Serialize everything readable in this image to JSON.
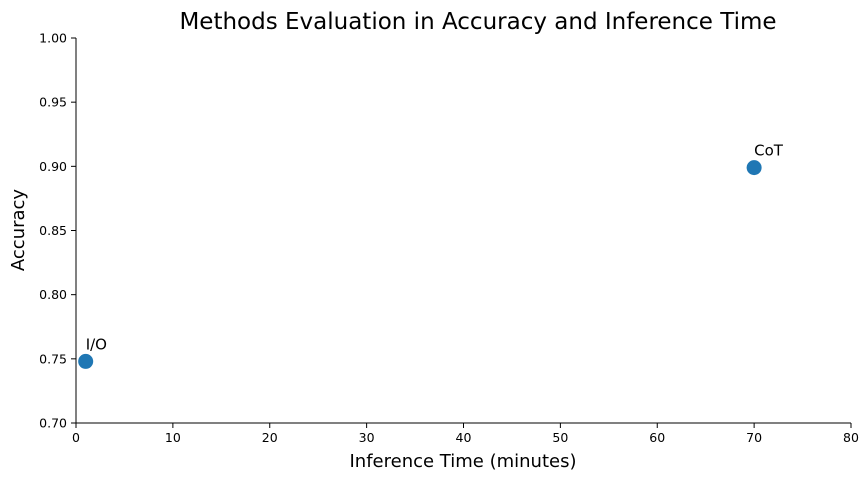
{
  "chart_data": {
    "type": "scatter",
    "title": "Methods Evaluation in Accuracy and Inference Time",
    "xlabel": "Inference Time (minutes)",
    "ylabel": "Accuracy",
    "xlim": [
      0,
      80
    ],
    "ylim": [
      0.7,
      1.0
    ],
    "xticks": [
      "0",
      "10",
      "20",
      "30",
      "40",
      "50",
      "60",
      "70",
      "80"
    ],
    "yticks": [
      "0.70",
      "0.75",
      "0.80",
      "0.85",
      "0.90",
      "0.95",
      "1.00"
    ],
    "grid": false,
    "marker_color": "#1f77b4",
    "points": [
      {
        "label": "I/O",
        "x": 1,
        "y": 0.748
      },
      {
        "label": "CoT",
        "x": 70,
        "y": 0.899
      }
    ]
  }
}
